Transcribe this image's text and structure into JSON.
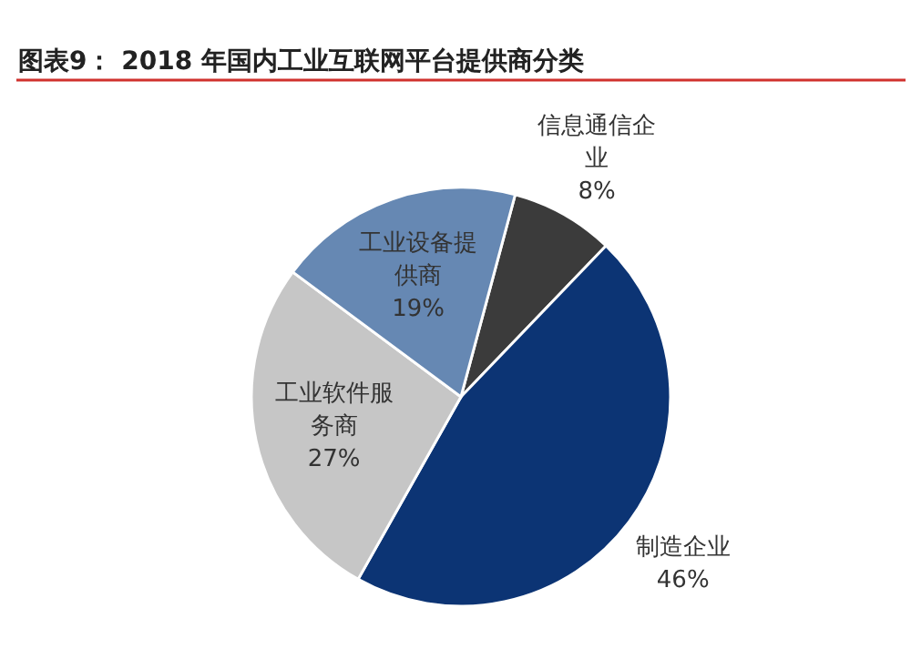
{
  "chart_data": {
    "type": "pie",
    "title": "图表9：  2018 年国内工业互联网平台提供商分类",
    "categories": [
      "信息通信企业",
      "制造企业",
      "工业软件服务商",
      "工业设备提供商"
    ],
    "values": [
      8,
      46,
      27,
      19
    ],
    "value_labels": [
      "8%",
      "46%",
      "27%",
      "19%"
    ],
    "colors": [
      "#3b3b3b",
      "#0c3474",
      "#c6c6c6",
      "#6688b3"
    ],
    "legend": false
  }
}
